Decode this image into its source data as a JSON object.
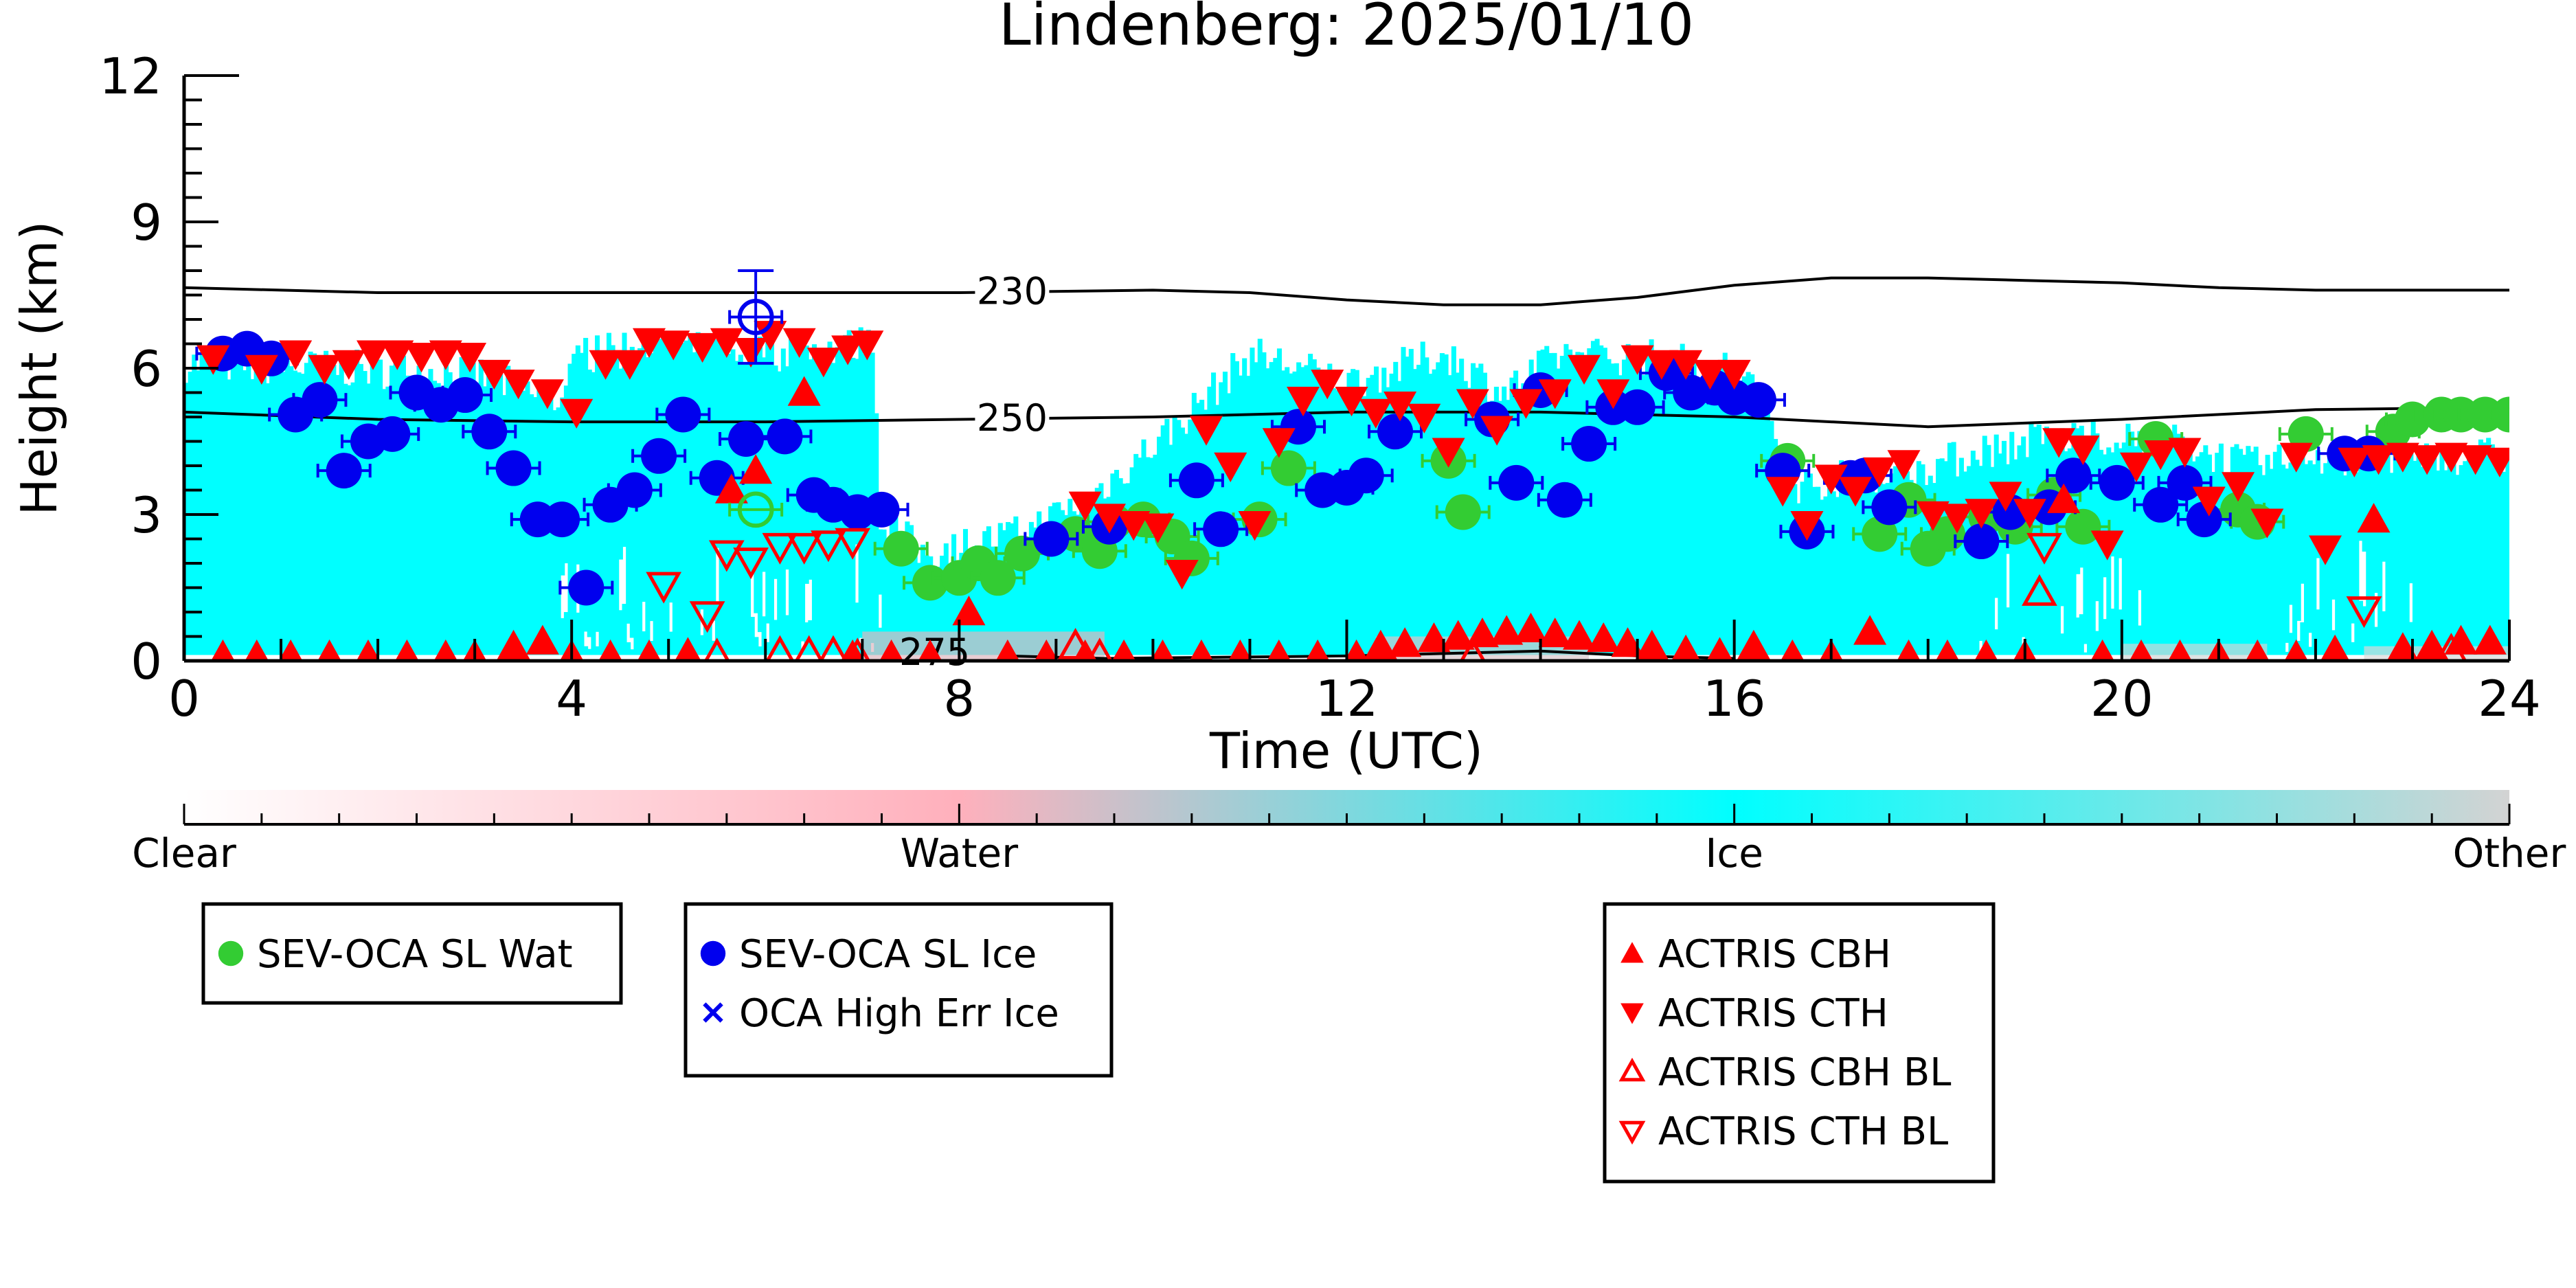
{
  "chart_data": {
    "type": "scatter",
    "title": "Lindenberg: 2025/01/10",
    "xlabel": "Time (UTC)",
    "ylabel": "Height (km)",
    "xlim": [
      0,
      24
    ],
    "ylim": [
      0,
      12
    ],
    "xticks": [
      0,
      4,
      8,
      12,
      16,
      20,
      24
    ],
    "yticks": [
      0,
      3,
      6,
      9,
      12
    ],
    "background": "cloud-classification shading (cyan = ice) below ~6.5 km",
    "contours": [
      {
        "label": "230",
        "x": [
          0,
          2,
          4,
          6,
          8,
          10,
          11,
          12,
          13,
          14,
          15,
          16,
          17,
          18,
          19,
          20,
          21,
          22,
          23,
          24
        ],
        "y": [
          7.65,
          7.55,
          7.55,
          7.55,
          7.55,
          7.6,
          7.55,
          7.4,
          7.3,
          7.3,
          7.45,
          7.7,
          7.85,
          7.85,
          7.8,
          7.75,
          7.65,
          7.6,
          7.6,
          7.6
        ]
      },
      {
        "label": "250",
        "x": [
          0,
          2,
          4,
          6,
          8,
          10,
          12,
          14,
          16,
          18,
          20,
          22,
          24
        ],
        "y": [
          5.1,
          4.95,
          4.9,
          4.9,
          4.95,
          5.0,
          5.1,
          5.1,
          5.0,
          4.8,
          4.95,
          5.15,
          5.2
        ]
      },
      {
        "label": "275",
        "x": [
          8.5,
          9.5,
          12,
          14,
          15,
          16
        ],
        "y": [
          0.1,
          0.05,
          0.1,
          0.2,
          0.1,
          0.05
        ]
      }
    ],
    "series": [
      {
        "name": "SEV-OCA SL Wat",
        "color": "#33cc33",
        "marker": "circle-filled",
        "x": [
          7.4,
          7.7,
          8.0,
          8.2,
          8.4,
          8.65,
          9.2,
          9.45,
          9.6,
          9.9,
          10.2,
          10.4,
          11.1,
          11.4,
          13.05,
          13.2,
          16.55,
          17.5,
          17.8,
          18.0,
          18.2,
          18.6,
          18.9,
          19.3,
          19.6,
          20.35,
          21.2,
          21.4,
          21.9,
          22.8,
          23.0,
          23.3,
          23.5,
          23.75,
          24.0
        ],
        "y": [
          2.3,
          1.6,
          1.7,
          2.0,
          1.7,
          2.2,
          2.6,
          2.25,
          2.85,
          2.9,
          2.55,
          2.1,
          2.9,
          3.95,
          4.1,
          3.05,
          4.1,
          2.6,
          3.3,
          2.3,
          2.6,
          2.95,
          2.75,
          3.4,
          2.75,
          4.55,
          3.1,
          2.85,
          4.65,
          4.7,
          4.95,
          5.05,
          5.05,
          5.05,
          5.05
        ]
      },
      {
        "name": "SEV-OCA SL Ice",
        "color": "#0000ee",
        "marker": "circle-filled",
        "x": [
          0.4,
          0.65,
          0.9,
          1.15,
          1.4,
          1.65,
          1.9,
          2.15,
          2.4,
          2.65,
          2.9,
          3.15,
          3.4,
          3.65,
          3.9,
          4.15,
          4.4,
          4.65,
          4.9,
          5.15,
          5.5,
          5.8,
          6.2,
          6.5,
          6.7,
          6.95,
          7.2,
          8.95,
          9.55,
          10.45,
          10.7,
          11.5,
          11.75,
          12.0,
          12.2,
          12.5,
          13.5,
          13.75,
          14.0,
          14.25,
          14.5,
          14.75,
          15.0,
          15.3,
          15.55,
          15.8,
          16.0,
          16.25,
          16.5,
          16.75,
          17.2,
          17.35,
          17.6,
          18.55,
          18.85,
          19.25,
          19.5,
          19.95,
          20.4,
          20.65,
          20.85,
          22.3,
          22.55
        ],
        "y": [
          6.3,
          6.4,
          6.2,
          5.05,
          5.35,
          3.9,
          4.5,
          4.65,
          5.5,
          5.25,
          5.45,
          4.7,
          3.95,
          2.9,
          2.9,
          1.5,
          3.2,
          3.5,
          4.2,
          5.05,
          3.75,
          4.55,
          4.6,
          3.4,
          3.2,
          3.05,
          3.1,
          2.5,
          2.75,
          3.7,
          2.7,
          4.8,
          3.5,
          3.55,
          3.8,
          4.7,
          4.95,
          3.65,
          5.55,
          3.3,
          4.45,
          5.2,
          5.2,
          5.9,
          5.5,
          5.6,
          5.4,
          5.35,
          3.9,
          2.65,
          3.75,
          3.8,
          3.15,
          2.45,
          3.05,
          3.15,
          3.8,
          3.65,
          3.2,
          3.65,
          2.9,
          4.25,
          4.25
        ]
      },
      {
        "name": "OCA High Err Ice",
        "color": "#0000ee",
        "marker": "x",
        "x": [],
        "y": []
      },
      {
        "name": "ACTRIS CBH",
        "color": "#ff0000",
        "marker": "triangle-up-filled",
        "x": [
          0.4,
          0.75,
          1.1,
          1.5,
          1.9,
          2.3,
          2.7,
          3.0,
          3.4,
          3.7,
          4.0,
          4.4,
          4.8,
          5.2,
          5.65,
          5.9,
          6.4,
          6.9,
          7.3,
          7.7,
          8.1,
          8.5,
          8.9,
          9.3,
          9.7,
          10.1,
          10.5,
          10.9,
          11.3,
          11.7,
          12.1,
          12.35,
          12.6,
          12.9,
          13.15,
          13.4,
          13.65,
          13.9,
          14.15,
          14.4,
          14.65,
          14.9,
          15.15,
          15.5,
          15.85,
          16.2,
          16.6,
          17.0,
          17.4,
          17.8,
          18.2,
          18.6,
          19.0,
          19.4,
          19.8,
          20.2,
          20.6,
          21.0,
          21.4,
          21.8,
          22.2,
          22.6,
          22.9,
          23.2,
          23.5,
          23.8
        ],
        "y": [
          0.1,
          0.1,
          0.1,
          0.1,
          0.1,
          0.1,
          0.1,
          0.1,
          0.3,
          0.4,
          0.1,
          0.1,
          0.1,
          0.15,
          3.5,
          3.9,
          5.5,
          0.1,
          0.1,
          0.1,
          1.0,
          0.1,
          0.1,
          0.1,
          0.1,
          0.1,
          0.1,
          0.1,
          0.1,
          0.1,
          0.1,
          0.3,
          0.35,
          0.45,
          0.5,
          0.55,
          0.6,
          0.65,
          0.55,
          0.5,
          0.45,
          0.35,
          0.3,
          0.2,
          0.15,
          0.3,
          0.1,
          0.1,
          0.6,
          0.1,
          0.1,
          0.1,
          0.1,
          3.3,
          0.1,
          0.1,
          0.1,
          0.1,
          0.1,
          0.1,
          0.2,
          2.9,
          0.25,
          0.3,
          0.4,
          0.4
        ]
      },
      {
        "name": "ACTRIS CTH",
        "color": "#ff0000",
        "marker": "triangle-down-filled",
        "x": [
          0.3,
          0.8,
          1.15,
          1.45,
          1.7,
          1.95,
          2.2,
          2.45,
          2.7,
          2.95,
          3.2,
          3.45,
          3.75,
          4.05,
          4.35,
          4.6,
          4.8,
          5.05,
          5.35,
          5.6,
          5.85,
          6.05,
          6.35,
          6.6,
          6.85,
          7.05,
          9.3,
          9.55,
          9.8,
          10.05,
          10.3,
          10.55,
          10.8,
          11.05,
          11.3,
          11.55,
          11.8,
          12.05,
          12.3,
          12.55,
          12.8,
          13.05,
          13.3,
          13.55,
          13.85,
          14.15,
          14.45,
          14.75,
          15.0,
          15.25,
          15.5,
          15.75,
          16.0,
          16.5,
          16.75,
          17.0,
          17.25,
          17.5,
          17.75,
          18.05,
          18.3,
          18.55,
          18.8,
          19.05,
          19.35,
          19.6,
          19.85,
          20.15,
          20.4,
          20.65,
          20.9,
          21.2,
          21.5,
          21.8,
          22.1,
          22.4,
          22.65,
          22.9,
          23.15,
          23.4,
          23.65,
          23.9
        ],
        "y": [
          6.2,
          6.0,
          6.3,
          6.0,
          6.1,
          6.3,
          6.3,
          6.25,
          6.3,
          6.25,
          5.9,
          5.7,
          5.5,
          5.1,
          6.1,
          6.1,
          6.55,
          6.5,
          6.45,
          6.55,
          6.35,
          6.7,
          6.55,
          6.15,
          6.4,
          6.5,
          3.2,
          2.95,
          2.8,
          2.75,
          1.8,
          4.75,
          4.0,
          2.8,
          4.5,
          5.35,
          5.7,
          5.35,
          5.1,
          5.25,
          5.0,
          4.3,
          5.3,
          4.75,
          5.3,
          5.5,
          6.0,
          5.5,
          6.2,
          6.1,
          6.1,
          5.9,
          5.9,
          3.5,
          2.8,
          3.75,
          3.5,
          3.9,
          4.05,
          3.0,
          2.95,
          3.05,
          3.4,
          3.05,
          4.5,
          4.35,
          2.4,
          4.0,
          4.25,
          4.3,
          3.3,
          3.6,
          2.85,
          4.2,
          2.3,
          4.1,
          4.15,
          4.2,
          4.15,
          4.2,
          4.15,
          4.1
        ]
      },
      {
        "name": "ACTRIS CBH BL",
        "color": "#ff0000",
        "marker": "triangle-up-open",
        "x": [
          5.5,
          6.15,
          6.45,
          6.7,
          6.95,
          9.2,
          9.45,
          13.3,
          19.15,
          23.4
        ],
        "y": [
          0.1,
          0.15,
          0.15,
          0.15,
          0.1,
          0.3,
          0.1,
          0.1,
          1.4,
          0.2
        ]
      },
      {
        "name": "ACTRIS CTH BL",
        "color": "#ff0000",
        "marker": "triangle-down-open",
        "x": [
          4.95,
          5.4,
          5.6,
          5.85,
          6.15,
          6.4,
          6.65,
          6.9,
          19.2,
          22.5
        ],
        "y": [
          1.55,
          0.95,
          2.2,
          2.05,
          2.35,
          2.35,
          2.4,
          2.45,
          2.35,
          1.05
        ]
      },
      {
        "name": "",
        "color": "#33cc33",
        "marker": "circle-open",
        "x": [
          5.9
        ],
        "y": [
          3.1
        ]
      },
      {
        "name": "",
        "color": "#0000ee",
        "marker": "circle-open",
        "x": [
          5.9
        ],
        "y": [
          7.05
        ],
        "yerr": [
          0.95
        ]
      }
    ],
    "colorbar": {
      "labels": [
        "Clear",
        "Water",
        "Ice",
        "Other"
      ],
      "stops": [
        "#ffffff",
        "#ffb0bc",
        "#00ffff",
        "#d3d3d3"
      ]
    },
    "legends": [
      {
        "entries": [
          {
            "label": "SEV-OCA SL Wat",
            "color": "#33cc33",
            "marker": "circle-filled"
          }
        ]
      },
      {
        "entries": [
          {
            "label": "SEV-OCA SL Ice",
            "color": "#0000ee",
            "marker": "circle-filled"
          },
          {
            "label": "OCA High Err Ice",
            "color": "#0000ee",
            "marker": "x"
          }
        ]
      },
      {
        "entries": [
          {
            "label": "ACTRIS CBH",
            "color": "#ff0000",
            "marker": "triangle-up-filled"
          },
          {
            "label": "ACTRIS CTH",
            "color": "#ff0000",
            "marker": "triangle-down-filled"
          },
          {
            "label": "ACTRIS CBH BL",
            "color": "#ff0000",
            "marker": "triangle-up-open"
          },
          {
            "label": "ACTRIS CTH BL",
            "color": "#ff0000",
            "marker": "triangle-down-open"
          }
        ]
      }
    ]
  }
}
